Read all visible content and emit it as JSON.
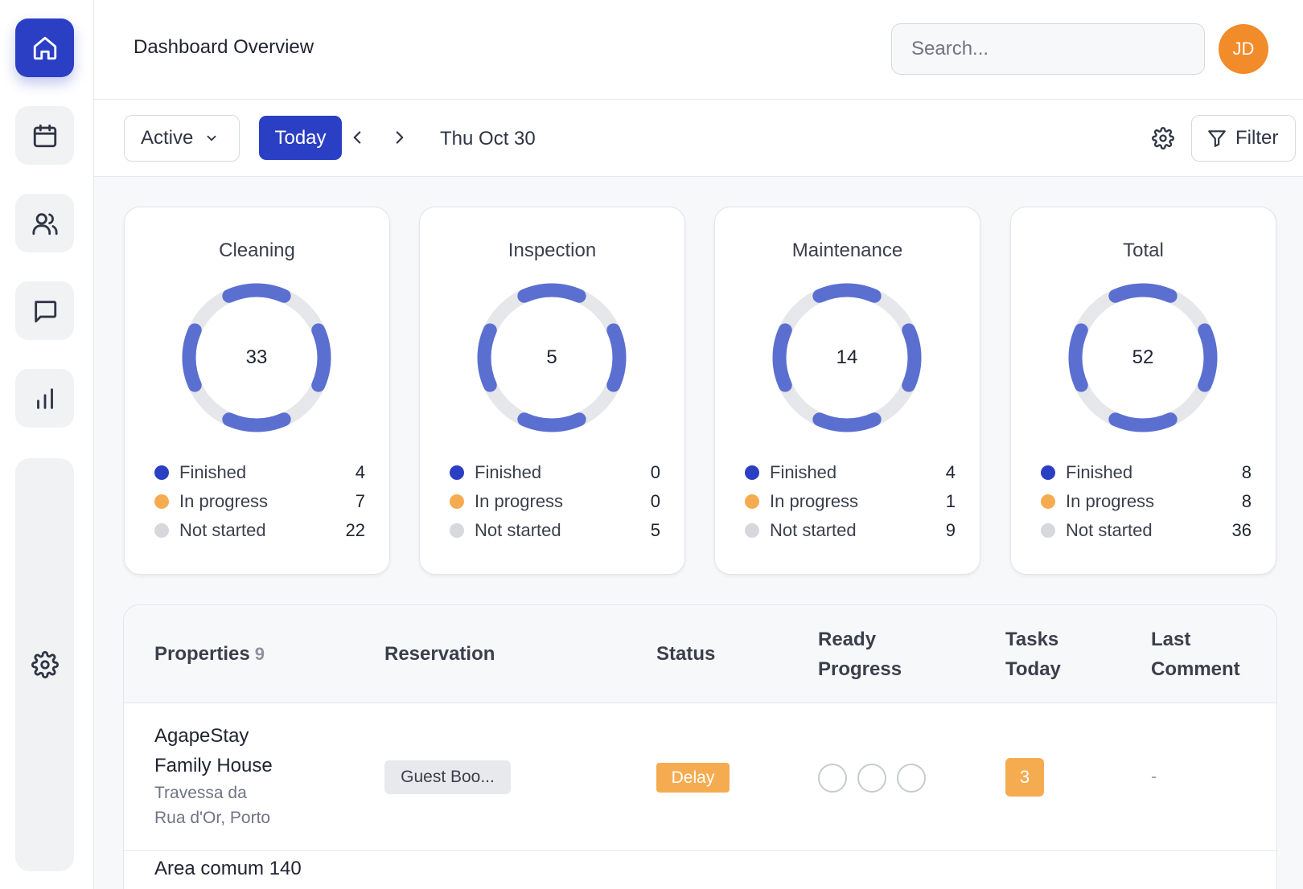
{
  "sidebar": {
    "items": [
      {
        "icon": "home-icon",
        "active": true
      },
      {
        "icon": "calendar-icon",
        "active": false
      },
      {
        "icon": "users-icon",
        "active": false
      },
      {
        "icon": "message-icon",
        "active": false
      },
      {
        "icon": "bar-chart-icon",
        "active": false
      }
    ],
    "settings_icon": "gear-icon"
  },
  "header": {
    "title": "Dashboard Overview",
    "search_placeholder": "Search...",
    "avatar_initials": "JD"
  },
  "toolbar": {
    "status_filter": "Active",
    "today_label": "Today",
    "date_label": "Thu Oct 30",
    "filter_label": "Filter"
  },
  "cards": [
    {
      "title": "Cleaning",
      "total": "33",
      "finished": "4",
      "in_progress": "7",
      "not_started": "22"
    },
    {
      "title": "Inspection",
      "total": "5",
      "finished": "0",
      "in_progress": "0",
      "not_started": "5"
    },
    {
      "title": "Maintenance",
      "total": "14",
      "finished": "4",
      "in_progress": "1",
      "not_started": "9"
    },
    {
      "title": "Total",
      "total": "52",
      "finished": "8",
      "in_progress": "8",
      "not_started": "36"
    }
  ],
  "legend": {
    "finished": "Finished",
    "in_progress": "In progress",
    "not_started": "Not started"
  },
  "table": {
    "headers": {
      "properties": "Properties",
      "properties_count": "9",
      "reservation": "Reservation",
      "status": "Status",
      "ready_progress_1": "Ready",
      "ready_progress_2": "Progress",
      "tasks_today_1": "Tasks",
      "tasks_today_2": "Today",
      "last_comment_1": "Last",
      "last_comment_2": "Comment"
    },
    "rows": [
      {
        "name_line1": "AgapeStay",
        "name_line2": "Family House",
        "address_line1": "Travessa da",
        "address_line2": "Rua d'Or, Porto",
        "reservation": "Guest Boo...",
        "status": "Delay",
        "tasks_today": "3",
        "last_comment": "-"
      },
      {
        "name_line1": "Area comum 140"
      }
    ]
  },
  "colors": {
    "primary": "#2b3fc4",
    "donut_segment": "#5b6fd0",
    "donut_track": "#e6e7eb",
    "finished": "#2b3fc4",
    "in_progress": "#f5ac51",
    "not_started": "#d6d8dd",
    "avatar": "#f28b2a"
  }
}
